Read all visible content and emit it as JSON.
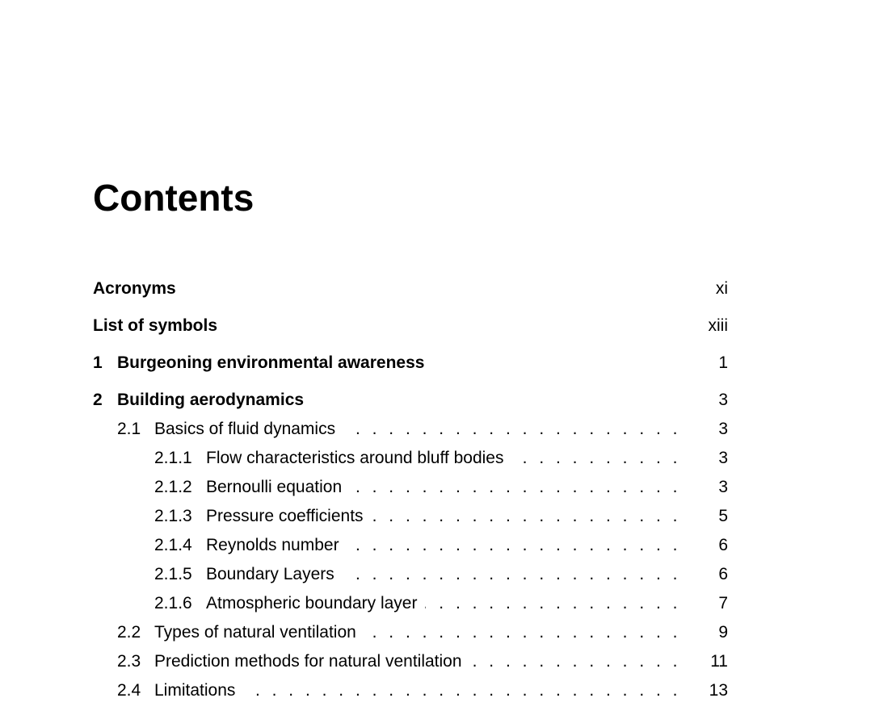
{
  "title": "Contents",
  "entries": [
    {
      "num": "",
      "title": "Acronyms",
      "page": "xi"
    },
    {
      "num": "",
      "title": "List of symbols",
      "page": "xiii"
    },
    {
      "num": "1",
      "title": "Burgeoning environmental awareness",
      "page": "1"
    },
    {
      "num": "2",
      "title": "Building aerodynamics",
      "page": "3"
    },
    {
      "num": "2.1",
      "title": "Basics of fluid dynamics",
      "page": "3"
    },
    {
      "num": "2.1.1",
      "title": "Flow characteristics around bluff bodies",
      "page": "3"
    },
    {
      "num": "2.1.2",
      "title": "Bernoulli equation",
      "page": "3"
    },
    {
      "num": "2.1.3",
      "title": "Pressure coefficients",
      "page": "5"
    },
    {
      "num": "2.1.4",
      "title": "Reynolds number",
      "page": "6"
    },
    {
      "num": "2.1.5",
      "title": "Boundary Layers",
      "page": "6"
    },
    {
      "num": "2.1.6",
      "title": "Atmospheric boundary layer",
      "page": "7"
    },
    {
      "num": "2.2",
      "title": "Types of natural ventilation",
      "page": "9"
    },
    {
      "num": "2.3",
      "title": "Prediction methods for natural ventilation",
      "page": "11"
    },
    {
      "num": "2.4",
      "title": "Limitations",
      "page": "13"
    }
  ]
}
